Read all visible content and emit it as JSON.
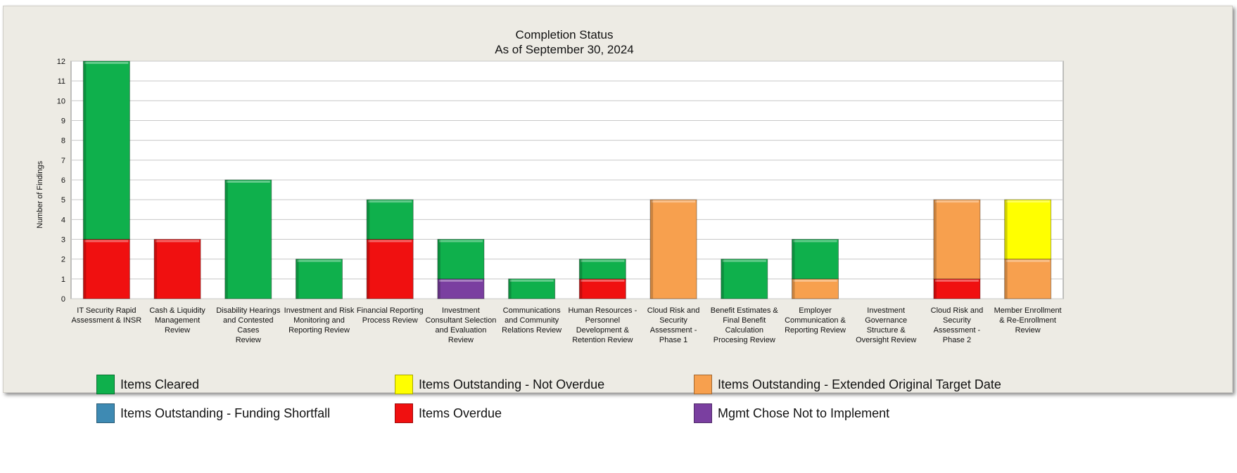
{
  "chart_data": {
    "type": "bar",
    "stacked": true,
    "title": "Completion Status",
    "subtitle": "As of September 30, 2024",
    "ylabel": "Number of Findings",
    "ylim": [
      0,
      12
    ],
    "yticks": [
      0,
      1,
      2,
      3,
      4,
      5,
      6,
      7,
      8,
      9,
      10,
      11,
      12
    ],
    "grid": true,
    "legend_position": "bottom",
    "categories": [
      [
        "IT Security Rapid",
        "Assessment & INSR"
      ],
      [
        "Cash & Liquidity",
        "Management",
        "Review"
      ],
      [
        "Disability Hearings",
        "and Contested",
        "Cases",
        "Review"
      ],
      [
        "Investment and Risk",
        "Monitoring and",
        "Reporting Review"
      ],
      [
        "Financial Reporting",
        "Process Review"
      ],
      [
        "Investment",
        "Consultant Selection",
        "and Evaluation",
        "Review"
      ],
      [
        "Communications",
        "and Community",
        "Relations Review"
      ],
      [
        "Human Resources -",
        "Personnel",
        "Development &",
        "Retention Review"
      ],
      [
        "Cloud Risk and",
        "Security",
        "Assessment -",
        "Phase 1"
      ],
      [
        "Benefit Estimates &",
        "Final Benefit",
        "Calculation",
        "Procesing Review"
      ],
      [
        "Employer",
        "Communication &",
        "Reporting Review"
      ],
      [
        "Investment",
        "Governance",
        "Structure &",
        "Oversight Review"
      ],
      [
        "Cloud Risk and",
        "Security",
        "Assessment -",
        "Phase 2"
      ],
      [
        "Member Enrollment",
        "& Re-Enrollment",
        "Review"
      ]
    ],
    "stack_order": [
      "Mgmt Chose Not to Implement",
      "Items Overdue",
      "Items Outstanding - Extended Original Target Date",
      "Items Outstanding - Funding Shortfall",
      "Items Outstanding - Not Overdue",
      "Items Cleared"
    ],
    "series": [
      {
        "name": "Items Cleared",
        "color": "#0fb04c",
        "values": [
          9,
          0,
          6,
          2,
          2,
          2,
          1,
          1,
          0,
          2,
          2,
          0,
          0,
          0
        ]
      },
      {
        "name": "Items Outstanding - Not Overdue",
        "color": "#ffff00",
        "values": [
          0,
          0,
          0,
          0,
          0,
          0,
          0,
          0,
          0,
          0,
          0,
          0,
          0,
          3
        ]
      },
      {
        "name": "Items Outstanding - Extended Original Target Date",
        "color": "#f7a04e",
        "values": [
          0,
          0,
          0,
          0,
          0,
          0,
          0,
          0,
          5,
          0,
          1,
          0,
          4,
          2
        ]
      },
      {
        "name": "Items Outstanding - Funding Shortfall",
        "color": "#3e8ab3",
        "values": [
          0,
          0,
          0,
          0,
          0,
          0,
          0,
          0,
          0,
          0,
          0,
          0,
          0,
          0
        ]
      },
      {
        "name": "Items Overdue",
        "color": "#f01010",
        "values": [
          3,
          3,
          0,
          0,
          3,
          0,
          0,
          1,
          0,
          0,
          0,
          0,
          1,
          0
        ]
      },
      {
        "name": "Mgmt Chose Not to Implement",
        "color": "#7a3fa0",
        "values": [
          0,
          0,
          0,
          0,
          0,
          1,
          0,
          0,
          0,
          0,
          0,
          0,
          0,
          0
        ]
      }
    ]
  },
  "legend": {
    "items": [
      {
        "label": "Items Cleared",
        "color": "#0fb04c"
      },
      {
        "label": "Items Outstanding - Not Overdue",
        "color": "#ffff00"
      },
      {
        "label": "Items Outstanding - Extended Original Target Date",
        "color": "#f7a04e"
      },
      {
        "label": "Items Outstanding - Funding Shortfall",
        "color": "#3e8ab3"
      },
      {
        "label": "Items Overdue",
        "color": "#f01010"
      },
      {
        "label": "Mgmt Chose Not to Implement",
        "color": "#7a3fa0"
      }
    ]
  }
}
